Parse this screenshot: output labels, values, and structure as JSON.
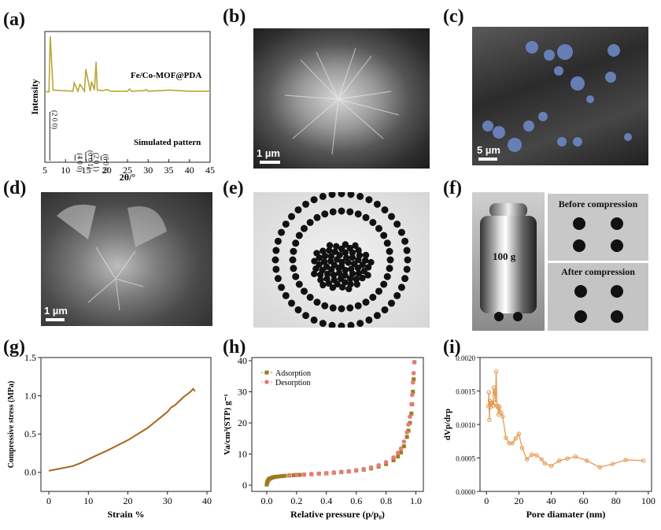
{
  "labels": {
    "a": "(a)",
    "b": "(b)",
    "c": "(c)",
    "d": "(d)",
    "e": "(e)",
    "f": "(f)",
    "g": "(g)",
    "h": "(h)",
    "i": "(i)"
  },
  "scales": {
    "b": "1 µm",
    "c": "5 µm",
    "d": "1 µm"
  },
  "photo_f": {
    "weight": "100 g",
    "before": "Before compression",
    "after": "After compression"
  },
  "colors": {
    "xrd": "#b5a834",
    "stress": "#a8651e",
    "adsorption": "#9c7c1a",
    "desorption": "#e87b7b",
    "pore": "#e69a55"
  },
  "chart_data": [
    {
      "type": "line",
      "ylabel": "Intensity",
      "xlabel": "2θ/°",
      "xlim": [
        5,
        45
      ],
      "xticks": [
        5,
        10,
        15,
        20,
        25,
        30,
        35,
        40,
        45
      ],
      "series": [
        {
          "name": "Fe/Co-MOF@PDA",
          "x": [
            5,
            6,
            6.3,
            7,
            11.8,
            12.1,
            13,
            13.5,
            14.6,
            14.9,
            16,
            16.3,
            17,
            17.4,
            17.7,
            19,
            20,
            21,
            25,
            25.5,
            26,
            29,
            29.5,
            30,
            33,
            35,
            40,
            45
          ],
          "y": [
            0.02,
            0.02,
            1.0,
            0.05,
            0.03,
            0.18,
            0.03,
            0.15,
            0.03,
            0.42,
            0.03,
            0.2,
            0.05,
            0.55,
            0.05,
            0.04,
            0.06,
            0.03,
            0.03,
            0.07,
            0.03,
            0.04,
            0.06,
            0.03,
            0.04,
            0.05,
            0.03,
            0.03
          ]
        },
        {
          "name": "Simulated pattern",
          "sticks": [
            {
              "x": 6.2,
              "h": 1.0,
              "label": "(2 0 0)"
            },
            {
              "x": 12.3,
              "h": 0.12,
              "label": "(4 0 0)"
            },
            {
              "x": 14.9,
              "h": 0.18,
              "label": "(0 0 1)"
            },
            {
              "x": 16.3,
              "h": 0.13,
              "label": "(2 0 1)"
            },
            {
              "x": 18.6,
              "h": 0.1,
              "label": "(6 0 0)"
            }
          ]
        }
      ]
    },
    {
      "type": "line",
      "xlabel": "Strain %",
      "ylabel": "Compressive stress (MPa)",
      "xlim": [
        -2,
        41
      ],
      "ylim": [
        -0.25,
        1.5
      ],
      "xticks": [
        0,
        10,
        20,
        30,
        40
      ],
      "yticks": [
        0.0,
        0.5,
        1.0,
        1.5
      ],
      "series": [
        {
          "x": [
            0,
            3,
            6,
            8,
            10,
            15,
            20,
            25,
            30,
            31,
            32,
            33,
            34,
            35,
            36,
            36.5,
            37
          ],
          "y": [
            0.02,
            0.05,
            0.08,
            0.12,
            0.17,
            0.29,
            0.42,
            0.58,
            0.79,
            0.85,
            0.88,
            0.93,
            0.98,
            1.02,
            1.06,
            1.09,
            1.06
          ]
        }
      ]
    },
    {
      "type": "scatter",
      "xlabel": "Relative pressure (p/p₀)",
      "ylabel": "Va/cm³(STP) g⁻¹",
      "xlim": [
        -0.1,
        1.05
      ],
      "ylim": [
        -2,
        41
      ],
      "xticks": [
        0.0,
        0.2,
        0.4,
        0.6,
        0.8,
        1.0
      ],
      "yticks": [
        0,
        10,
        20,
        30,
        40
      ],
      "series": [
        {
          "name": "Adsorption",
          "x": [
            0.0,
            0.003,
            0.006,
            0.01,
            0.015,
            0.02,
            0.03,
            0.04,
            0.05,
            0.06,
            0.08,
            0.1,
            0.12,
            0.15,
            0.18,
            0.2,
            0.22,
            0.25,
            0.3,
            0.35,
            0.4,
            0.45,
            0.5,
            0.55,
            0.6,
            0.65,
            0.7,
            0.75,
            0.8,
            0.85,
            0.88,
            0.9,
            0.92,
            0.94,
            0.95,
            0.96,
            0.97,
            0.975,
            0.98,
            0.985,
            0.99
          ],
          "y": [
            0.2,
            0.8,
            1.2,
            1.6,
            1.9,
            2.1,
            2.3,
            2.5,
            2.6,
            2.7,
            2.8,
            2.9,
            3.0,
            3.1,
            3.2,
            3.3,
            3.3,
            3.4,
            3.5,
            3.7,
            3.8,
            4.0,
            4.2,
            4.4,
            4.7,
            5.0,
            5.4,
            6.0,
            6.8,
            8.0,
            9.2,
            10.5,
            12.5,
            15.5,
            17.5,
            20,
            23,
            26,
            30,
            34,
            39.5
          ]
        },
        {
          "name": "Desorption",
          "x": [
            0.99,
            0.985,
            0.98,
            0.975,
            0.97,
            0.96,
            0.95,
            0.94,
            0.92,
            0.9,
            0.88,
            0.85,
            0.8,
            0.75,
            0.7,
            0.65,
            0.6,
            0.55,
            0.5,
            0.45,
            0.4,
            0.35,
            0.3,
            0.25,
            0.2,
            0.15
          ],
          "y": [
            39.5,
            36,
            33,
            29,
            26,
            22,
            19.5,
            17,
            14,
            11.8,
            10.4,
            8.9,
            7.4,
            6.4,
            5.7,
            5.2,
            4.8,
            4.5,
            4.3,
            4.1,
            3.9,
            3.7,
            3.6,
            3.4,
            3.3,
            3.2
          ]
        }
      ]
    },
    {
      "type": "line",
      "xlabel": "Pore diamater (nm)",
      "ylabel": "dVp/drp",
      "xlim": [
        -4,
        102
      ],
      "ylim": [
        0,
        0.002
      ],
      "xticks": [
        0,
        20,
        40,
        60,
        80,
        100
      ],
      "yticks": [
        "0.0000",
        "0.0005",
        "0.0010",
        "0.0015",
        "0.0020"
      ],
      "series": [
        {
          "x": [
            1.2,
            1.5,
            1.8,
            2.1,
            2.5,
            3,
            3.5,
            4,
            4.5,
            5,
            5.5,
            6,
            6.5,
            7,
            7.5,
            8,
            9,
            10,
            12,
            14,
            16,
            18,
            20,
            22,
            25,
            28,
            31,
            34,
            36,
            40,
            45,
            50,
            55,
            62,
            70,
            78,
            86,
            97
          ],
          "y": [
            0.00127,
            0.00148,
            0.00107,
            0.00135,
            0.00126,
            0.00131,
            0.00133,
            0.00128,
            0.00155,
            0.00148,
            0.00133,
            0.00179,
            0.00128,
            0.00126,
            0.00115,
            0.00127,
            0.00118,
            0.00112,
            0.0008,
            0.00072,
            0.00072,
            0.00079,
            0.00086,
            0.00065,
            0.00048,
            0.00055,
            0.00054,
            0.00048,
            0.00042,
            0.00038,
            0.00046,
            0.00049,
            0.00052,
            0.00046,
            0.00036,
            0.00041,
            0.00047,
            0.00046
          ]
        }
      ]
    }
  ]
}
